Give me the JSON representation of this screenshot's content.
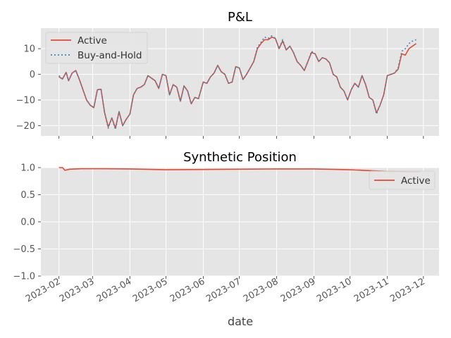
{
  "chart_data": [
    {
      "type": "line",
      "title": "P&L",
      "xlabel": "",
      "ylabel": "",
      "ylim": [
        -24,
        18
      ],
      "yticks": [
        -20,
        -10,
        0,
        10
      ],
      "legend_position": "top-left",
      "grid": true,
      "series": [
        {
          "name": "Active",
          "style": "solid",
          "color": "#E24A33",
          "points": [
            [
              "2023-02-01",
              -1.0
            ],
            [
              "2023-02-04",
              -1.8
            ],
            [
              "2023-02-07",
              0.8
            ],
            [
              "2023-02-09",
              -2.5
            ],
            [
              "2023-02-12",
              0.5
            ],
            [
              "2023-02-15",
              1.5
            ],
            [
              "2023-02-18",
              -2.0
            ],
            [
              "2023-02-21",
              -6.0
            ],
            [
              "2023-02-24",
              -10.0
            ],
            [
              "2023-02-27",
              -12.0
            ],
            [
              "2023-03-02",
              -13.0
            ],
            [
              "2023-03-05",
              -6.0
            ],
            [
              "2023-03-08",
              -5.8
            ],
            [
              "2023-03-11",
              -15.0
            ],
            [
              "2023-03-14",
              -20.5
            ],
            [
              "2023-03-17",
              -17.0
            ],
            [
              "2023-03-20",
              -21.0
            ],
            [
              "2023-03-23",
              -14.5
            ],
            [
              "2023-03-26",
              -20.0
            ],
            [
              "2023-03-29",
              -17.5
            ],
            [
              "2023-04-01",
              -15.5
            ],
            [
              "2023-04-04",
              -8.0
            ],
            [
              "2023-04-07",
              -5.5
            ],
            [
              "2023-04-10",
              -5.0
            ],
            [
              "2023-04-13",
              -4.0
            ],
            [
              "2023-04-16",
              -0.5
            ],
            [
              "2023-04-19",
              -1.5
            ],
            [
              "2023-04-22",
              -2.5
            ],
            [
              "2023-04-25",
              -5.5
            ],
            [
              "2023-04-28",
              0.0
            ],
            [
              "2023-05-01",
              -0.5
            ],
            [
              "2023-05-04",
              -8.0
            ],
            [
              "2023-05-07",
              -4.0
            ],
            [
              "2023-05-10",
              -5.0
            ],
            [
              "2023-05-13",
              -10.5
            ],
            [
              "2023-05-16",
              -4.5
            ],
            [
              "2023-05-19",
              -6.5
            ],
            [
              "2023-05-22",
              -11.5
            ],
            [
              "2023-05-25",
              -9.0
            ],
            [
              "2023-05-28",
              -9.5
            ],
            [
              "2023-06-01",
              -3.0
            ],
            [
              "2023-06-04",
              -3.5
            ],
            [
              "2023-06-07",
              -1.0
            ],
            [
              "2023-06-10",
              0.5
            ],
            [
              "2023-06-13",
              3.5
            ],
            [
              "2023-06-16",
              1.0
            ],
            [
              "2023-06-19",
              0.0
            ],
            [
              "2023-06-22",
              -3.5
            ],
            [
              "2023-06-25",
              -3.0
            ],
            [
              "2023-06-28",
              3.0
            ],
            [
              "2023-07-01",
              2.5
            ],
            [
              "2023-07-04",
              -2.0
            ],
            [
              "2023-07-07",
              0.0
            ],
            [
              "2023-07-10",
              2.5
            ],
            [
              "2023-07-13",
              5.0
            ],
            [
              "2023-07-16",
              10.0
            ],
            [
              "2023-07-19",
              12.0
            ],
            [
              "2023-07-22",
              13.5
            ],
            [
              "2023-07-25",
              13.5
            ],
            [
              "2023-07-28",
              14.5
            ],
            [
              "2023-07-31",
              14.0
            ],
            [
              "2023-08-03",
              10.0
            ],
            [
              "2023-08-06",
              13.0
            ],
            [
              "2023-08-09",
              9.5
            ],
            [
              "2023-08-12",
              11.0
            ],
            [
              "2023-08-15",
              8.5
            ],
            [
              "2023-08-18",
              5.0
            ],
            [
              "2023-08-21",
              3.5
            ],
            [
              "2023-08-24",
              1.5
            ],
            [
              "2023-08-27",
              5.0
            ],
            [
              "2023-08-30",
              8.5
            ],
            [
              "2023-09-02",
              8.0
            ],
            [
              "2023-09-05",
              5.0
            ],
            [
              "2023-09-08",
              6.5
            ],
            [
              "2023-09-11",
              6.0
            ],
            [
              "2023-09-14",
              4.5
            ],
            [
              "2023-09-17",
              0.0
            ],
            [
              "2023-09-20",
              -1.0
            ],
            [
              "2023-09-23",
              -5.0
            ],
            [
              "2023-09-26",
              -6.5
            ],
            [
              "2023-09-29",
              -10.0
            ],
            [
              "2023-10-02",
              -6.0
            ],
            [
              "2023-10-05",
              -3.5
            ],
            [
              "2023-10-08",
              -5.0
            ],
            [
              "2023-10-11",
              -0.5
            ],
            [
              "2023-10-14",
              -4.0
            ],
            [
              "2023-10-17",
              -9.0
            ],
            [
              "2023-10-20",
              -10.0
            ],
            [
              "2023-10-23",
              -15.0
            ],
            [
              "2023-10-26",
              -12.0
            ],
            [
              "2023-10-29",
              -8.0
            ],
            [
              "2023-11-01",
              -0.5
            ],
            [
              "2023-11-04",
              0.0
            ],
            [
              "2023-11-07",
              0.5
            ],
            [
              "2023-11-10",
              2.0
            ],
            [
              "2023-11-13",
              8.0
            ],
            [
              "2023-11-16",
              7.5
            ],
            [
              "2023-11-19",
              10.0
            ],
            [
              "2023-11-22",
              11.0
            ],
            [
              "2023-11-25",
              12.0
            ]
          ]
        },
        {
          "name": "Buy-and-Hold",
          "style": "dotted",
          "color": "#348ABD",
          "points": [
            [
              "2023-02-01",
              -0.5
            ],
            [
              "2023-02-04",
              -1.8
            ],
            [
              "2023-02-07",
              0.8
            ],
            [
              "2023-02-09",
              -2.5
            ],
            [
              "2023-02-12",
              0.5
            ],
            [
              "2023-02-15",
              1.5
            ],
            [
              "2023-02-18",
              -2.0
            ],
            [
              "2023-02-21",
              -6.0
            ],
            [
              "2023-02-24",
              -10.0
            ],
            [
              "2023-02-27",
              -12.0
            ],
            [
              "2023-03-02",
              -13.0
            ],
            [
              "2023-03-05",
              -6.0
            ],
            [
              "2023-03-08",
              -5.8
            ],
            [
              "2023-03-11",
              -15.0
            ],
            [
              "2023-03-14",
              -21.0
            ],
            [
              "2023-03-17",
              -17.0
            ],
            [
              "2023-03-20",
              -21.5
            ],
            [
              "2023-03-23",
              -14.5
            ],
            [
              "2023-03-26",
              -20.0
            ],
            [
              "2023-03-29",
              -17.5
            ],
            [
              "2023-04-01",
              -15.5
            ],
            [
              "2023-04-04",
              -8.0
            ],
            [
              "2023-04-07",
              -5.5
            ],
            [
              "2023-04-10",
              -5.0
            ],
            [
              "2023-04-13",
              -4.0
            ],
            [
              "2023-04-16",
              -0.5
            ],
            [
              "2023-04-19",
              -1.5
            ],
            [
              "2023-04-22",
              -2.5
            ],
            [
              "2023-04-25",
              -5.5
            ],
            [
              "2023-04-28",
              0.0
            ],
            [
              "2023-05-01",
              -0.5
            ],
            [
              "2023-05-04",
              -8.0
            ],
            [
              "2023-05-07",
              -4.0
            ],
            [
              "2023-05-10",
              -5.0
            ],
            [
              "2023-05-13",
              -10.5
            ],
            [
              "2023-05-16",
              -4.5
            ],
            [
              "2023-05-19",
              -6.5
            ],
            [
              "2023-05-22",
              -11.5
            ],
            [
              "2023-05-25",
              -9.0
            ],
            [
              "2023-05-28",
              -9.5
            ],
            [
              "2023-06-01",
              -3.0
            ],
            [
              "2023-06-04",
              -3.5
            ],
            [
              "2023-06-07",
              -1.0
            ],
            [
              "2023-06-10",
              0.5
            ],
            [
              "2023-06-13",
              3.5
            ],
            [
              "2023-06-16",
              1.0
            ],
            [
              "2023-06-19",
              0.0
            ],
            [
              "2023-06-22",
              -3.5
            ],
            [
              "2023-06-25",
              -3.0
            ],
            [
              "2023-06-28",
              3.0
            ],
            [
              "2023-07-01",
              2.5
            ],
            [
              "2023-07-04",
              -2.0
            ],
            [
              "2023-07-07",
              0.0
            ],
            [
              "2023-07-10",
              2.5
            ],
            [
              "2023-07-13",
              5.0
            ],
            [
              "2023-07-16",
              10.5
            ],
            [
              "2023-07-19",
              12.5
            ],
            [
              "2023-07-22",
              14.5
            ],
            [
              "2023-07-25",
              14.0
            ],
            [
              "2023-07-28",
              15.0
            ],
            [
              "2023-07-31",
              14.0
            ],
            [
              "2023-08-03",
              10.0
            ],
            [
              "2023-08-06",
              13.5
            ],
            [
              "2023-08-09",
              9.5
            ],
            [
              "2023-08-12",
              11.0
            ],
            [
              "2023-08-15",
              8.5
            ],
            [
              "2023-08-18",
              5.0
            ],
            [
              "2023-08-21",
              3.5
            ],
            [
              "2023-08-24",
              1.5
            ],
            [
              "2023-08-27",
              5.0
            ],
            [
              "2023-08-30",
              9.0
            ],
            [
              "2023-09-02",
              8.0
            ],
            [
              "2023-09-05",
              5.0
            ],
            [
              "2023-09-08",
              6.5
            ],
            [
              "2023-09-11",
              6.0
            ],
            [
              "2023-09-14",
              4.5
            ],
            [
              "2023-09-17",
              0.0
            ],
            [
              "2023-09-20",
              -1.0
            ],
            [
              "2023-09-23",
              -5.0
            ],
            [
              "2023-09-26",
              -6.5
            ],
            [
              "2023-09-29",
              -10.0
            ],
            [
              "2023-10-02",
              -6.0
            ],
            [
              "2023-10-05",
              -3.5
            ],
            [
              "2023-10-08",
              -5.0
            ],
            [
              "2023-10-11",
              -0.5
            ],
            [
              "2023-10-14",
              -4.0
            ],
            [
              "2023-10-17",
              -9.0
            ],
            [
              "2023-10-20",
              -10.0
            ],
            [
              "2023-10-23",
              -15.5
            ],
            [
              "2023-10-26",
              -12.0
            ],
            [
              "2023-10-29",
              -8.0
            ],
            [
              "2023-11-01",
              -0.5
            ],
            [
              "2023-11-04",
              0.0
            ],
            [
              "2023-11-07",
              0.5
            ],
            [
              "2023-11-10",
              2.5
            ],
            [
              "2023-11-13",
              9.0
            ],
            [
              "2023-11-16",
              10.0
            ],
            [
              "2023-11-19",
              12.0
            ],
            [
              "2023-11-22",
              13.0
            ],
            [
              "2023-11-25",
              13.5
            ]
          ]
        }
      ]
    },
    {
      "type": "line",
      "title": "Synthetic Position",
      "xlabel": "date",
      "ylabel": "",
      "ylim": [
        -1.0,
        1.0
      ],
      "yticks": [
        -1.0,
        -0.5,
        0.0,
        0.5,
        1.0
      ],
      "legend_position": "upper-right",
      "grid": true,
      "series": [
        {
          "name": "Active",
          "style": "solid",
          "color": "#E24A33",
          "points": [
            [
              "2023-02-01",
              1.0
            ],
            [
              "2023-02-04",
              1.0
            ],
            [
              "2023-02-06",
              0.95
            ],
            [
              "2023-02-10",
              0.97
            ],
            [
              "2023-02-20",
              0.98
            ],
            [
              "2023-03-10",
              0.98
            ],
            [
              "2023-04-01",
              0.975
            ],
            [
              "2023-05-01",
              0.96
            ],
            [
              "2023-06-01",
              0.965
            ],
            [
              "2023-07-01",
              0.97
            ],
            [
              "2023-08-01",
              0.975
            ],
            [
              "2023-09-01",
              0.975
            ],
            [
              "2023-10-01",
              0.96
            ],
            [
              "2023-11-01",
              0.93
            ],
            [
              "2023-11-28",
              0.92
            ]
          ]
        }
      ]
    }
  ],
  "x_ticks": [
    "2023-02",
    "2023-03",
    "2023-04",
    "2023-05",
    "2023-06",
    "2023-07",
    "2023-08",
    "2023-09",
    "2023-10",
    "2023-11",
    "2023-12"
  ],
  "x_range": [
    "2023-01-17",
    "2023-12-14"
  ]
}
